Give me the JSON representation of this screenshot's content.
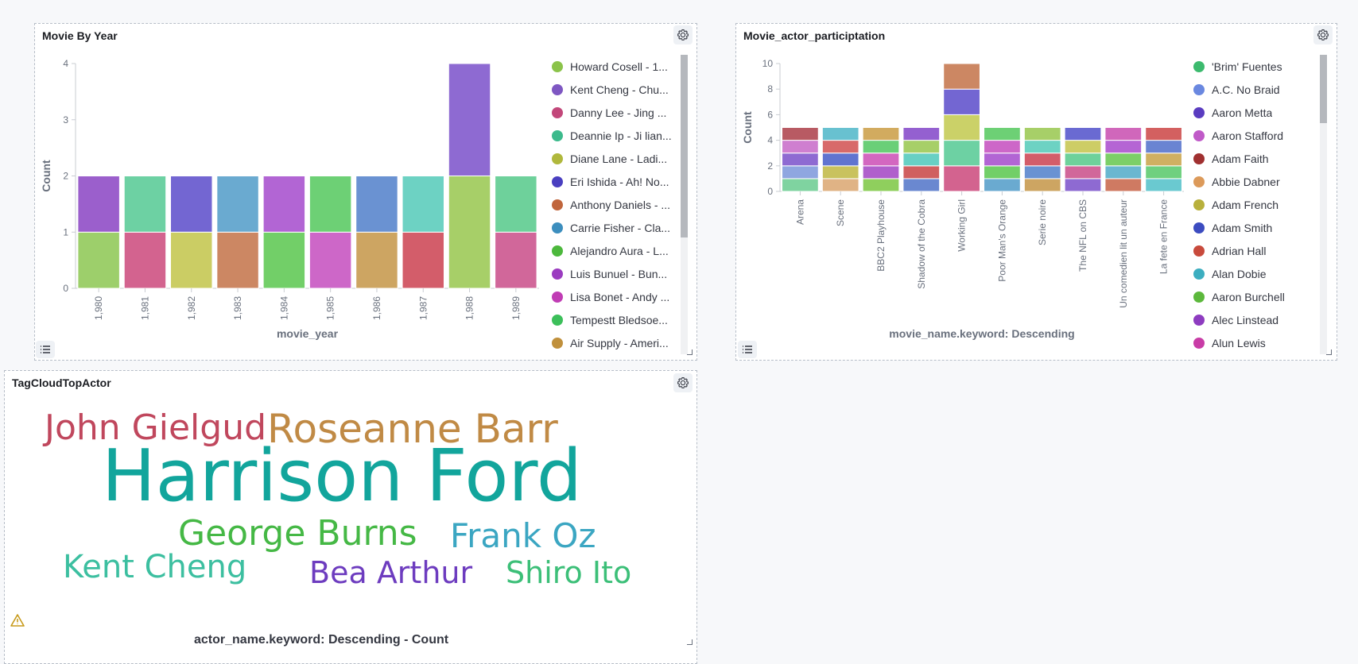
{
  "panel1": {
    "title": "Movie By Year",
    "chart_data": {
      "type": "bar",
      "stacked": true,
      "categories": [
        "1,980",
        "1,981",
        "1,982",
        "1,983",
        "1,984",
        "1,985",
        "1,986",
        "1,987",
        "1,988",
        "1,989"
      ],
      "segments": [
        [
          {
            "value": 1,
            "color": "#9dcf6b"
          },
          {
            "value": 1,
            "color": "#9b5fcc"
          }
        ],
        [
          {
            "value": 1,
            "color": "#d3638f"
          },
          {
            "value": 1,
            "color": "#6dd1a3"
          }
        ],
        [
          {
            "value": 1,
            "color": "#cbcd64"
          },
          {
            "value": 1,
            "color": "#7366d2"
          }
        ],
        [
          {
            "value": 1,
            "color": "#cc8763"
          },
          {
            "value": 1,
            "color": "#6aaad0"
          }
        ],
        [
          {
            "value": 1,
            "color": "#72cf68"
          },
          {
            "value": 1,
            "color": "#b265d4"
          }
        ],
        [
          {
            "value": 1,
            "color": "#cd67c8"
          },
          {
            "value": 1,
            "color": "#6dd075"
          }
        ],
        [
          {
            "value": 1,
            "color": "#cda562"
          },
          {
            "value": 1,
            "color": "#6a92d2"
          }
        ],
        [
          {
            "value": 1,
            "color": "#d35d6a"
          },
          {
            "value": 1,
            "color": "#6dd2c3"
          }
        ],
        [
          {
            "value": 2,
            "color": "#a7cf68"
          },
          {
            "value": 2,
            "color": "#8e6ad2"
          }
        ],
        [
          {
            "value": 1,
            "color": "#d1679a"
          },
          {
            "value": 1,
            "color": "#6ed19b"
          }
        ]
      ],
      "xlabel": "movie_year",
      "ylabel": "Count",
      "ylim": [
        0,
        4
      ],
      "yticks": [
        "0",
        "1",
        "2",
        "3",
        "4"
      ],
      "grid": false,
      "legend_position": "right"
    },
    "legend": [
      {
        "label": "Howard Cosell - 1...",
        "color": "#8bc34a"
      },
      {
        "label": "Kent Cheng - Chu...",
        "color": "#7e57c2"
      },
      {
        "label": "Danny Lee - Jing ...",
        "color": "#c2477a"
      },
      {
        "label": "Deannie Ip - Ji lian...",
        "color": "#3cba8c"
      },
      {
        "label": "Diane Lane - Ladi...",
        "color": "#b0b83c"
      },
      {
        "label": "Eri Ishida - Ah! No...",
        "color": "#4a3fc0"
      },
      {
        "label": "Anthony Daniels - ...",
        "color": "#c0653c"
      },
      {
        "label": "Carrie Fisher - Cla...",
        "color": "#3c8ebe"
      },
      {
        "label": "Alejandro Aura - L...",
        "color": "#4cb83c"
      },
      {
        "label": "Luis Bunuel - Bun...",
        "color": "#9b3cc0"
      },
      {
        "label": "Lisa Bonet - Andy ...",
        "color": "#c03cb4"
      },
      {
        "label": "Tempestt Bledsoe...",
        "color": "#3cbf5a"
      },
      {
        "label": "Air Supply - Ameri...",
        "color": "#c0903c"
      }
    ]
  },
  "panel2": {
    "title": "Movie_actor_participtation",
    "chart_data": {
      "type": "bar",
      "stacked": true,
      "categories": [
        "Arena",
        "Scene",
        "BBC2 Playhouse",
        "Shadow of the Cobra",
        "Working Girl",
        "Poor Man's Orange",
        "Serie noire",
        "The NFL on CBS",
        "Un comedien lit un auteur",
        "La fete en France"
      ],
      "segments": [
        [
          {
            "value": 1,
            "color": "#7fd3a0"
          },
          {
            "value": 1,
            "color": "#8fa6e0"
          },
          {
            "value": 1,
            "color": "#8e6ad2"
          },
          {
            "value": 1,
            "color": "#cf7fd0"
          },
          {
            "value": 1,
            "color": "#b85a63"
          }
        ],
        [
          {
            "value": 1,
            "color": "#e0b385"
          },
          {
            "value": 1,
            "color": "#c9c25e"
          },
          {
            "value": 1,
            "color": "#6174d0"
          },
          {
            "value": 1,
            "color": "#d86a6a"
          },
          {
            "value": 1,
            "color": "#68c1d0"
          }
        ],
        [
          {
            "value": 1,
            "color": "#8fcf5d"
          },
          {
            "value": 1,
            "color": "#b060cc"
          },
          {
            "value": 1,
            "color": "#d367c0"
          },
          {
            "value": 1,
            "color": "#6acf78"
          },
          {
            "value": 1,
            "color": "#d2ab5f"
          }
        ],
        [
          {
            "value": 1,
            "color": "#6a88d0"
          },
          {
            "value": 1,
            "color": "#d06060"
          },
          {
            "value": 1,
            "color": "#68d0c4"
          },
          {
            "value": 1,
            "color": "#a7cf68"
          },
          {
            "value": 1,
            "color": "#9460d0"
          }
        ],
        [
          {
            "value": 2,
            "color": "#d3638f"
          },
          {
            "value": 2,
            "color": "#6dd1a3"
          },
          {
            "value": 2,
            "color": "#cbd168"
          },
          {
            "value": 2,
            "color": "#7366d2"
          },
          {
            "value": 2,
            "color": "#cc8763"
          }
        ],
        [
          {
            "value": 1,
            "color": "#6aaad0"
          },
          {
            "value": 1,
            "color": "#72cf68"
          },
          {
            "value": 1,
            "color": "#b265d4"
          },
          {
            "value": 1,
            "color": "#cd67c8"
          },
          {
            "value": 1,
            "color": "#6dd075"
          }
        ],
        [
          {
            "value": 1,
            "color": "#cda562"
          },
          {
            "value": 1,
            "color": "#6a92d2"
          },
          {
            "value": 1,
            "color": "#d35d6a"
          },
          {
            "value": 1,
            "color": "#6dd2c3"
          },
          {
            "value": 1,
            "color": "#a7cf68"
          }
        ],
        [
          {
            "value": 1,
            "color": "#8e6ad2"
          },
          {
            "value": 1,
            "color": "#d1679a"
          },
          {
            "value": 1,
            "color": "#6ed19b"
          },
          {
            "value": 1,
            "color": "#cdcd66"
          },
          {
            "value": 1,
            "color": "#6a6ad2"
          }
        ],
        [
          {
            "value": 1,
            "color": "#cf7a62"
          },
          {
            "value": 1,
            "color": "#6ab7d0"
          },
          {
            "value": 1,
            "color": "#7ccf68"
          },
          {
            "value": 1,
            "color": "#b565d4"
          },
          {
            "value": 1,
            "color": "#d067bb"
          }
        ],
        [
          {
            "value": 1,
            "color": "#6ac9d0"
          },
          {
            "value": 1,
            "color": "#6fd07f"
          },
          {
            "value": 1,
            "color": "#d0b062"
          },
          {
            "value": 1,
            "color": "#6a84d2"
          },
          {
            "value": 1,
            "color": "#d36060"
          }
        ]
      ],
      "xlabel": "movie_name.keyword: Descending",
      "ylabel": "Count",
      "ylim": [
        0,
        10
      ],
      "yticks": [
        "0",
        "2",
        "4",
        "6",
        "8",
        "10"
      ],
      "grid": false,
      "legend_position": "right"
    },
    "legend": [
      {
        "label": "'Brim' Fuentes",
        "color": "#3cba6e"
      },
      {
        "label": "A.C. No Braid",
        "color": "#6a88e0"
      },
      {
        "label": "Aaron Metta",
        "color": "#5a3cc0"
      },
      {
        "label": "Aaron Stafford",
        "color": "#c05ac8"
      },
      {
        "label": "Adam Faith",
        "color": "#a03030"
      },
      {
        "label": "Abbie Dabner",
        "color": "#dc9a5a"
      },
      {
        "label": "Adam French",
        "color": "#b8b03c"
      },
      {
        "label": "Adam Smith",
        "color": "#3c4cc0"
      },
      {
        "label": "Adrian Hall",
        "color": "#c84a3c"
      },
      {
        "label": "Alan Dobie",
        "color": "#3caec0"
      },
      {
        "label": "Aaron Burchell",
        "color": "#5cb83c"
      },
      {
        "label": "Alec Linstead",
        "color": "#8e3cc0"
      },
      {
        "label": "Alun Lewis",
        "color": "#c83ca6"
      }
    ]
  },
  "panel3": {
    "title": "TagCloudTopActor",
    "words": [
      {
        "text": "John Gielgud",
        "color": "#c0475d"
      },
      {
        "text": "Roseanne Barr",
        "color": "#c08a45"
      },
      {
        "text": "Harrison Ford",
        "color": "#12a59c"
      },
      {
        "text": "George Burns",
        "color": "#45b845"
      },
      {
        "text": "Frank Oz",
        "color": "#3ba6c2"
      },
      {
        "text": "Kent Cheng",
        "color": "#3cbfa0"
      },
      {
        "text": "Bea Arthur",
        "color": "#6d3cbf"
      },
      {
        "text": "Shiro Ito",
        "color": "#3cbf78"
      }
    ],
    "footer_label": "actor_name.keyword: Descending - Count"
  }
}
